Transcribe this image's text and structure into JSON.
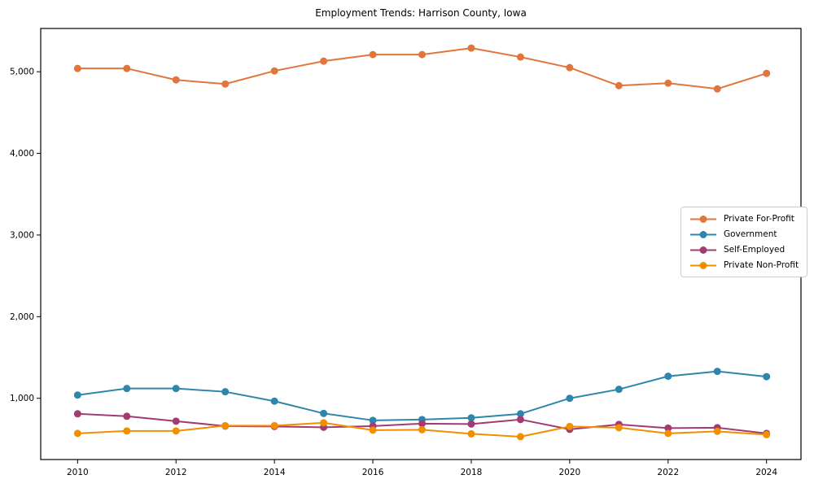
{
  "chart_data": {
    "type": "line",
    "title": "Employment Trends: Harrison County, Iowa",
    "xlabel": "",
    "ylabel": "",
    "x": [
      2010,
      2011,
      2012,
      2013,
      2014,
      2015,
      2016,
      2017,
      2018,
      2019,
      2020,
      2021,
      2022,
      2023,
      2024
    ],
    "series": [
      {
        "name": "Private For-Profit",
        "color": "#E1763C",
        "values": [
          5040,
          5040,
          4900,
          4850,
          5010,
          5130,
          5210,
          5210,
          5290,
          5180,
          5050,
          4830,
          4860,
          4790,
          4980
        ]
      },
      {
        "name": "Government",
        "color": "#2E86AB",
        "values": [
          1040,
          1120,
          1120,
          1080,
          965,
          815,
          730,
          740,
          760,
          810,
          1000,
          1110,
          1270,
          1330,
          1265
        ]
      },
      {
        "name": "Self-Employed",
        "color": "#A23B72",
        "values": [
          810,
          780,
          720,
          660,
          655,
          645,
          660,
          690,
          685,
          740,
          620,
          680,
          635,
          640,
          570
        ]
      },
      {
        "name": "Private Non-Profit",
        "color": "#F18F01",
        "values": [
          570,
          600,
          600,
          665,
          665,
          700,
          610,
          615,
          565,
          530,
          655,
          640,
          570,
          595,
          555
        ]
      }
    ],
    "xticks": [
      2010,
      2012,
      2014,
      2016,
      2018,
      2020,
      2022,
      2024
    ],
    "yticks": [
      1000,
      2000,
      3000,
      4000,
      5000
    ],
    "ytick_labels": [
      "1,000",
      "2,000",
      "3,000",
      "4,000",
      "5,000"
    ],
    "xlim": [
      2009.25,
      2024.7
    ],
    "ylim": [
      250,
      5530
    ],
    "grid": false,
    "legend_position": "center-right",
    "frame_color": "#000000",
    "text_color": "#000000"
  }
}
